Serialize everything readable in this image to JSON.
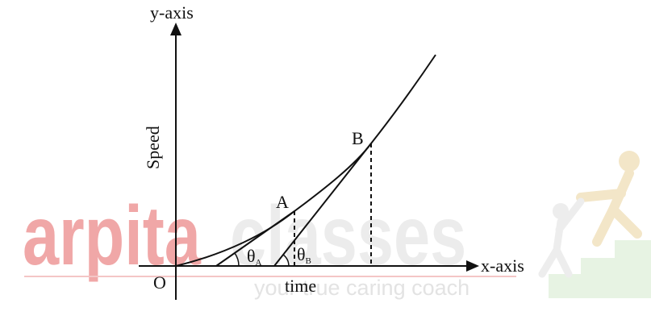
{
  "diagram": {
    "axes": {
      "y_label": "y-axis",
      "x_label": "x-axis",
      "y_title": "Speed",
      "x_title": "time",
      "origin": "O"
    },
    "points": {
      "a": "A",
      "b": "B"
    },
    "angles": {
      "a": {
        "symbol": "θ",
        "subscript": "A"
      },
      "b": {
        "symbol": "θ",
        "subscript": "B"
      }
    },
    "watermark": {
      "brand_1": "arpita",
      "brand_2": "classes",
      "tagline": "your true caring coach"
    }
  }
}
